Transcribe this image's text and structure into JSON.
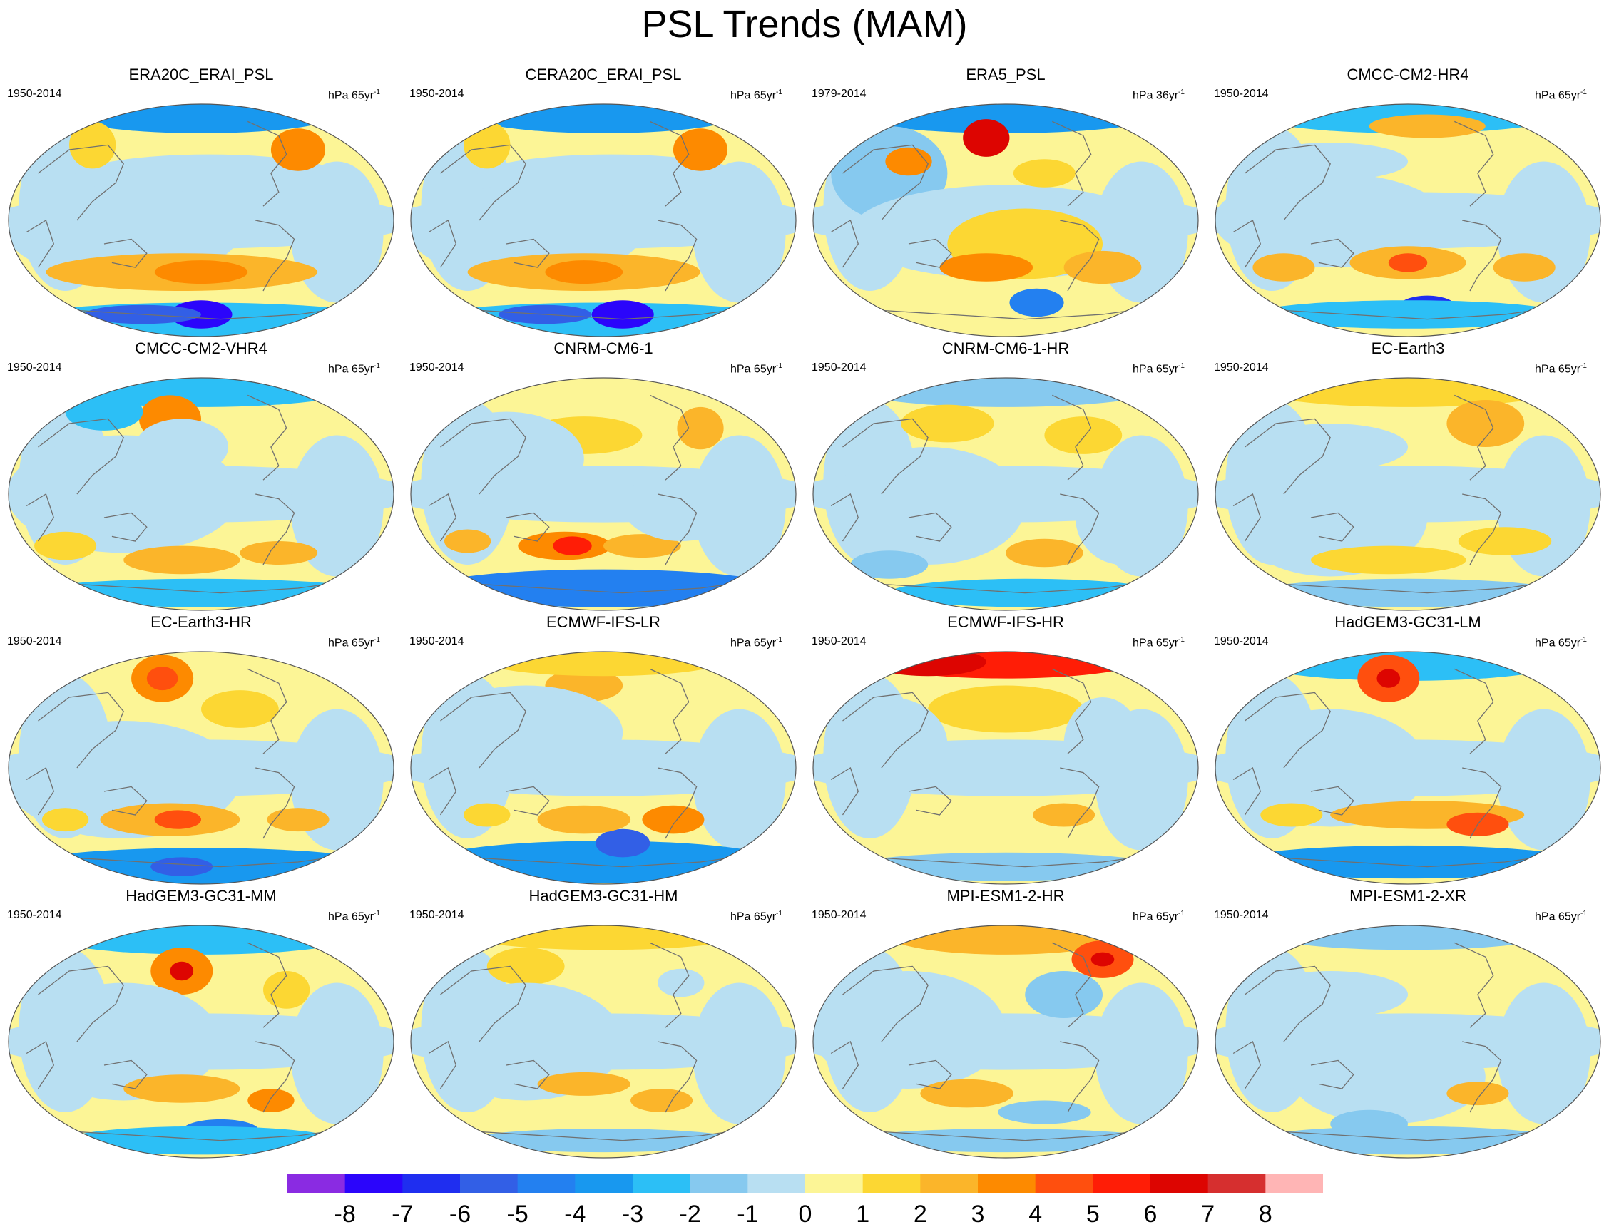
{
  "title": "PSL Trends (MAM)",
  "colors": {
    "levels": [
      "#8a2be2",
      "#2b05fb",
      "#1f2ef0",
      "#325fe6",
      "#2380f0",
      "#1898ef",
      "#2cbff6",
      "#86c9ef",
      "#b8dff2",
      "#fcf596",
      "#fcd733",
      "#fbb52a",
      "#fd8a00",
      "#ff4f0e",
      "#ff1d06",
      "#dd0501",
      "#d62f2f",
      "#ffb5b5"
    ],
    "coast": "#707070",
    "outline": "#555555"
  },
  "colorbar": {
    "labels": [
      "-8",
      "-7",
      "-6",
      "-5",
      "-4",
      "-3",
      "-2",
      "-1",
      "0",
      "1",
      "2",
      "3",
      "4",
      "5",
      "6",
      "7",
      "8"
    ]
  },
  "chart_data": {
    "type": "heatmap",
    "projection": "global map",
    "variable": "PSL trend",
    "bins": [
      -8,
      -7,
      -6,
      -5,
      -4,
      -3,
      -2,
      -1,
      0,
      1,
      2,
      3,
      4,
      5,
      6,
      7,
      8
    ],
    "panels": [
      {
        "title": "ERA20C_ERAI_PSL",
        "period": "1950-2014",
        "units": "hPa 65yr",
        "unit_exp": "-1"
      },
      {
        "title": "CERA20C_ERAI_PSL",
        "period": "1950-2014",
        "units": "hPa 65yr",
        "unit_exp": "-1"
      },
      {
        "title": "ERA5_PSL",
        "period": "1979-2014",
        "units": "hPa 36yr",
        "unit_exp": "-1"
      },
      {
        "title": "CMCC-CM2-HR4",
        "period": "1950-2014",
        "units": "hPa 65yr",
        "unit_exp": "-1"
      },
      {
        "title": "CMCC-CM2-VHR4",
        "period": "1950-2014",
        "units": "hPa 65yr",
        "unit_exp": "-1"
      },
      {
        "title": "CNRM-CM6-1",
        "period": "1950-2014",
        "units": "hPa 65yr",
        "unit_exp": "-1"
      },
      {
        "title": "CNRM-CM6-1-HR",
        "period": "1950-2014",
        "units": "hPa 65yr",
        "unit_exp": "-1"
      },
      {
        "title": "EC-Earth3",
        "period": "1950-2014",
        "units": "hPa 65yr",
        "unit_exp": "-1"
      },
      {
        "title": "EC-Earth3-HR",
        "period": "1950-2014",
        "units": "hPa 65yr",
        "unit_exp": "-1"
      },
      {
        "title": "ECMWF-IFS-LR",
        "period": "1950-2014",
        "units": "hPa 65yr",
        "unit_exp": "-1"
      },
      {
        "title": "ECMWF-IFS-HR",
        "period": "1950-2014",
        "units": "hPa 65yr",
        "unit_exp": "-1"
      },
      {
        "title": "HadGEM3-GC31-LM",
        "period": "1950-2014",
        "units": "hPa 65yr",
        "unit_exp": "-1"
      },
      {
        "title": "HadGEM3-GC31-MM",
        "period": "1950-2014",
        "units": "hPa 65yr",
        "unit_exp": "-1"
      },
      {
        "title": "HadGEM3-GC31-HM",
        "period": "1950-2014",
        "units": "hPa 65yr",
        "unit_exp": "-1"
      },
      {
        "title": "MPI-ESM1-2-HR",
        "period": "1950-2014",
        "units": "hPa 65yr",
        "unit_exp": "-1"
      },
      {
        "title": "MPI-ESM1-2-XR",
        "period": "1950-2014",
        "units": "hPa 65yr",
        "unit_exp": "-1"
      }
    ]
  }
}
